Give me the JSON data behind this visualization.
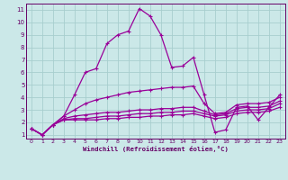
{
  "xlabel": "Windchill (Refroidissement éolien,°C)",
  "bg_color": "#cbe8e8",
  "grid_color": "#a8cece",
  "line_color": "#990099",
  "spine_color": "#660066",
  "xlim": [
    -0.5,
    23.5
  ],
  "ylim": [
    0.7,
    11.5
  ],
  "xticks": [
    0,
    1,
    2,
    3,
    4,
    5,
    6,
    7,
    8,
    9,
    10,
    11,
    12,
    13,
    14,
    15,
    16,
    17,
    18,
    19,
    20,
    21,
    22,
    23
  ],
  "yticks": [
    1,
    2,
    3,
    4,
    5,
    6,
    7,
    8,
    9,
    10,
    11
  ],
  "series": [
    [
      1.5,
      1.0,
      1.8,
      2.5,
      4.2,
      6.0,
      6.3,
      8.3,
      9.0,
      9.3,
      11.1,
      10.5,
      9.0,
      6.4,
      6.5,
      7.2,
      4.2,
      1.2,
      1.4,
      3.2,
      3.3,
      2.2,
      3.2,
      4.2
    ],
    [
      1.5,
      1.0,
      1.8,
      2.5,
      3.0,
      3.5,
      3.8,
      4.0,
      4.2,
      4.4,
      4.5,
      4.6,
      4.7,
      4.8,
      4.8,
      4.9,
      3.5,
      2.7,
      2.8,
      3.4,
      3.5,
      3.5,
      3.6,
      4.0
    ],
    [
      1.5,
      1.0,
      1.8,
      2.3,
      2.5,
      2.6,
      2.7,
      2.8,
      2.8,
      2.9,
      3.0,
      3.0,
      3.1,
      3.1,
      3.2,
      3.2,
      2.9,
      2.6,
      2.7,
      3.1,
      3.2,
      3.2,
      3.3,
      3.7
    ],
    [
      1.5,
      1.0,
      1.8,
      2.2,
      2.3,
      2.3,
      2.4,
      2.5,
      2.5,
      2.6,
      2.7,
      2.7,
      2.8,
      2.8,
      2.9,
      2.9,
      2.7,
      2.5,
      2.6,
      2.9,
      3.0,
      3.0,
      3.1,
      3.5
    ],
    [
      1.5,
      1.0,
      1.8,
      2.2,
      2.2,
      2.2,
      2.2,
      2.3,
      2.3,
      2.4,
      2.4,
      2.5,
      2.5,
      2.6,
      2.6,
      2.7,
      2.5,
      2.3,
      2.4,
      2.7,
      2.8,
      2.8,
      2.9,
      3.2
    ]
  ]
}
